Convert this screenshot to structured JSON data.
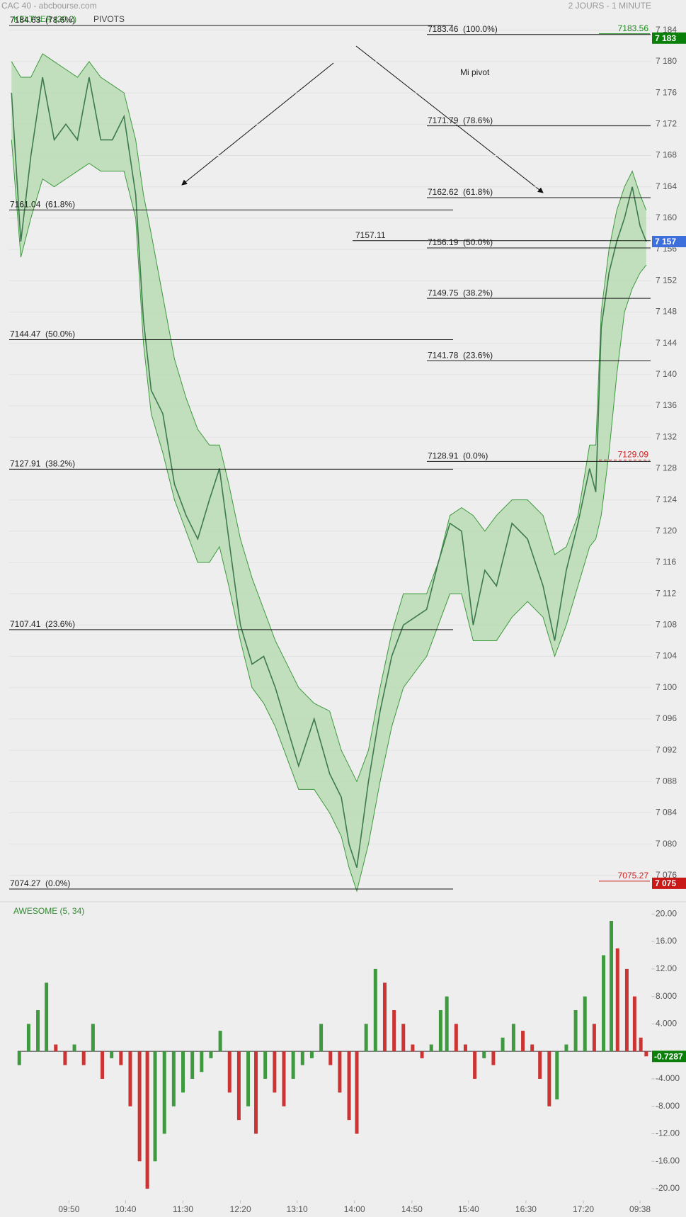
{
  "chart_data": [
    {
      "type": "line",
      "title": "CAC 40 - abcbourse.com",
      "subtitle": "2 JOURS - 1 MINUTE",
      "overlay_label": "PIVOTS",
      "xlim": [
        0,
        828
      ],
      "ylim": [
        7073,
        7185
      ],
      "yticks": [
        {
          "value": 7184,
          "label": "7 184"
        },
        {
          "value": 7180,
          "label": "7 180"
        },
        {
          "value": 7176,
          "label": "7 176"
        },
        {
          "value": 7172,
          "label": "7 172"
        },
        {
          "value": 7168,
          "label": "7 168"
        },
        {
          "value": 7164,
          "label": "7 164"
        },
        {
          "value": 7160,
          "label": "7 160"
        },
        {
          "value": 7156,
          "label": "7 156"
        },
        {
          "value": 7152,
          "label": "7 152"
        },
        {
          "value": 7148,
          "label": "7 148"
        },
        {
          "value": 7144,
          "label": "7 144"
        },
        {
          "value": 7140,
          "label": "7 140"
        },
        {
          "value": 7136,
          "label": "7 136"
        },
        {
          "value": 7132,
          "label": "7 132"
        },
        {
          "value": 7128,
          "label": "7 128"
        },
        {
          "value": 7124,
          "label": "7 124"
        },
        {
          "value": 7120,
          "label": "7 120"
        },
        {
          "value": 7116,
          "label": "7 116"
        },
        {
          "value": 7112,
          "label": "7 112"
        },
        {
          "value": 7108,
          "label": "7 108"
        },
        {
          "value": 7104,
          "label": "7 104"
        },
        {
          "value": 7100,
          "label": "7 100"
        },
        {
          "value": 7096,
          "label": "7 096"
        },
        {
          "value": 7092,
          "label": "7 092"
        },
        {
          "value": 7088,
          "label": "7 088"
        },
        {
          "value": 7084,
          "label": "7 084"
        },
        {
          "value": 7080,
          "label": "7 080"
        },
        {
          "value": 7076,
          "label": "7 076"
        }
      ],
      "grid": true,
      "x": [
        3,
        15,
        28,
        43,
        58,
        73,
        88,
        103,
        118,
        133,
        148,
        163,
        173,
        183,
        198,
        213,
        228,
        243,
        258,
        271,
        283,
        298,
        313,
        328,
        343,
        358,
        373,
        393,
        413,
        428,
        438,
        448,
        463,
        478,
        493,
        508,
        523,
        538,
        553,
        568,
        583,
        598,
        613,
        628,
        648,
        668,
        688,
        703,
        718,
        733,
        748,
        756,
        763,
        773,
        783,
        793,
        803,
        813,
        821
      ],
      "series": [
        {
          "color": "#3d7a4e",
          "values": [
            7176,
            7157,
            7168,
            7178,
            7170,
            7172,
            7170,
            7178,
            7170,
            7170,
            7173,
            7163,
            7147,
            7138,
            7135,
            7126,
            7122,
            7119,
            7124,
            7128,
            7119,
            7108,
            7103,
            7104,
            7100,
            7095,
            7090,
            7096,
            7089,
            7086,
            7080,
            7077,
            7088,
            7097,
            7104,
            7108,
            7109,
            7110,
            7116,
            7121,
            7120,
            7108,
            7115,
            7113,
            7121,
            7119,
            7113,
            7106,
            7115,
            7121,
            7128,
            7125,
            7146,
            7153,
            7157,
            7160,
            7164,
            7159,
            7157
          ]
        }
      ],
      "band": {
        "name": "KELTNER (20,2)",
        "color": "#3e9a3e",
        "fill": "#b9dbb4",
        "upper": [
          7180,
          7178,
          7178,
          7181,
          7180,
          7179,
          7178,
          7180,
          7178,
          7177,
          7176,
          7170,
          7163,
          7158,
          7150,
          7142,
          7137,
          7133,
          7131,
          7131,
          7126,
          7119,
          7114,
          7110,
          7106,
          7103,
          7100,
          7098,
          7097,
          7092,
          7090,
          7088,
          7092,
          7100,
          7107,
          7112,
          7112,
          7112,
          7116,
          7122,
          7123,
          7122,
          7120,
          7122,
          7124,
          7124,
          7122,
          7117,
          7118,
          7122,
          7131,
          7131,
          7148,
          7156,
          7161,
          7164,
          7166,
          7163,
          7161
        ],
        "lower": [
          7170,
          7155,
          7160,
          7165,
          7164,
          7165,
          7166,
          7167,
          7166,
          7166,
          7166,
          7160,
          7144,
          7135,
          7130,
          7124,
          7120,
          7116,
          7116,
          7118,
          7113,
          7106,
          7100,
          7098,
          7095,
          7091,
          7087,
          7087,
          7084,
          7081,
          7077,
          7074,
          7080,
          7088,
          7095,
          7100,
          7102,
          7104,
          7108,
          7112,
          7112,
          7106,
          7106,
          7106,
          7109,
          7111,
          7109,
          7104,
          7108,
          7113,
          7118,
          7119,
          7122,
          7130,
          7140,
          7148,
          7151,
          7153,
          7154
        ]
      },
      "retracement_left": [
        {
          "value": 7184.63,
          "label": "7184.63  (78.6%)"
        },
        {
          "value": 7161.04,
          "label": "7161.04  (61.8%)"
        },
        {
          "value": 7144.47,
          "label": "7144.47  (50.0%)"
        },
        {
          "value": 7127.91,
          "label": "7127.91  (38.2%)"
        },
        {
          "value": 7107.41,
          "label": "7107.41  (23.6%)"
        },
        {
          "value": 7074.27,
          "label": "7074.27  (0.0%)"
        }
      ],
      "retracement_right": [
        {
          "value": 7183.46,
          "label": "7183.46  (100.0%)"
        },
        {
          "value": 7171.79,
          "label": "7171.79  (78.6%)"
        },
        {
          "value": 7162.62,
          "label": "7162.62  (61.8%)"
        },
        {
          "value": 7156.19,
          "label": "7156.19  (50.0%)"
        },
        {
          "value": 7149.75,
          "label": "7149.75  (38.2%)"
        },
        {
          "value": 7141.78,
          "label": "7141.78  (23.6%)"
        },
        {
          "value": 7128.91,
          "label": "7128.91  (0.0%)"
        }
      ],
      "pivot": 7157.11,
      "pivot_label": "Mi pivot",
      "markers": [
        7183.56,
        7129.09,
        7075.27
      ],
      "marker_colors": [
        "#1a8a1a",
        "#d02020",
        "#d02020"
      ],
      "price_tags": [
        {
          "value": 7183,
          "label": "7 183",
          "color": "#0a800a"
        },
        {
          "value": 7157,
          "label": "7 157",
          "color": "#3c6fdc"
        },
        {
          "value": 7075,
          "label": "7 075",
          "color": "#c81818"
        }
      ]
    },
    {
      "type": "bar",
      "title": "AWESOME (5, 34)",
      "xlim": [
        0,
        828
      ],
      "xticks": [
        {
          "value": 77,
          "label": "09:50"
        },
        {
          "value": 150,
          "label": "10:40"
        },
        {
          "value": 224,
          "label": "11:30"
        },
        {
          "value": 298,
          "label": "12:20"
        },
        {
          "value": 371,
          "label": "13:10"
        },
        {
          "value": 445,
          "label": "14:00"
        },
        {
          "value": 519,
          "label": "14:50"
        },
        {
          "value": 592,
          "label": "15:40"
        },
        {
          "value": 666,
          "label": "16:30"
        },
        {
          "value": 740,
          "label": "17:20"
        },
        {
          "value": 813,
          "label": "09:38"
        }
      ],
      "ylim": [
        -21.5,
        21
      ],
      "yticks": [
        {
          "value": 20,
          "label": "20.00"
        },
        {
          "value": 16,
          "label": "16.00"
        },
        {
          "value": 12,
          "label": "12.00"
        },
        {
          "value": 8,
          "label": "8.000"
        },
        {
          "value": 4,
          "label": "4.000"
        },
        {
          "value": -4,
          "label": "-4.000"
        },
        {
          "value": -8,
          "label": "-8.000"
        },
        {
          "value": -12,
          "label": "-12.00"
        },
        {
          "value": -16,
          "label": "-16.00"
        },
        {
          "value": -20,
          "label": "-20.00"
        }
      ],
      "up_color": "#3f9a3f",
      "down_color": "#cc3434",
      "x": [
        13,
        25,
        37,
        48,
        60,
        72,
        84,
        96,
        108,
        120,
        132,
        144,
        156,
        168,
        178,
        188,
        200,
        212,
        224,
        236,
        248,
        260,
        272,
        284,
        296,
        308,
        318,
        330,
        342,
        354,
        366,
        378,
        390,
        402,
        414,
        426,
        438,
        448,
        460,
        472,
        484,
        496,
        508,
        520,
        532,
        544,
        556,
        564,
        576,
        588,
        600,
        612,
        624,
        636,
        650,
        662,
        674,
        684,
        696,
        706,
        718,
        730,
        742,
        754,
        766,
        776,
        784,
        796,
        806,
        814,
        821
      ],
      "series": [
        {
          "values": [
            -2,
            4,
            6,
            10,
            1,
            -2,
            1,
            -2,
            4,
            -4,
            -1,
            -2,
            -8,
            -16,
            -20,
            -16,
            -12,
            -8,
            -6,
            -4,
            -3,
            -1,
            3,
            -6,
            -10,
            -8,
            -12,
            -4,
            -6,
            -8,
            -4,
            -2,
            -1,
            4,
            -2,
            -6,
            -10,
            -12,
            4,
            12,
            10,
            6,
            4,
            1,
            -1,
            1,
            6,
            8,
            4,
            1,
            -4,
            -1,
            -2,
            2,
            4,
            3,
            1,
            -4,
            -8,
            -7,
            1,
            6,
            8,
            4,
            14,
            19,
            15,
            12,
            8,
            2,
            -0.7287
          ]
        }
      ]
    }
  ]
}
